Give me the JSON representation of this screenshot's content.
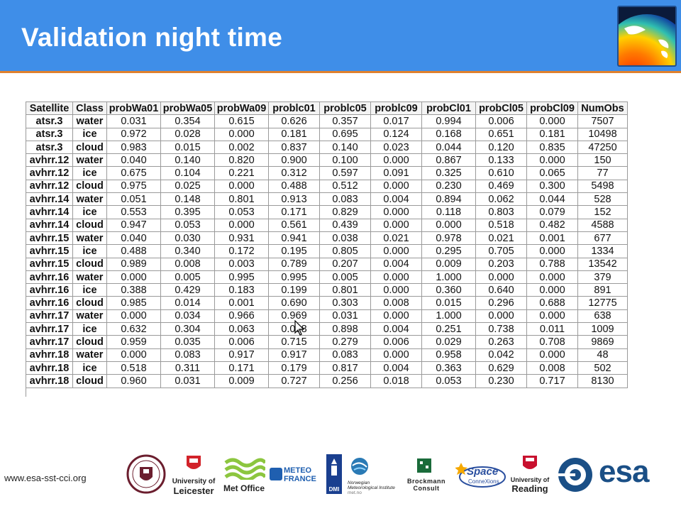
{
  "slide": {
    "title": "Validation night time",
    "footer_url": "www.esa-sst-cci.org"
  },
  "table": {
    "headers": [
      "Satellite",
      "Class",
      "probWa01",
      "probWa05",
      "probWa09",
      "problc01",
      "problc05",
      "problc09",
      "probCl01",
      "probCl05",
      "probCl09",
      "NumObs"
    ],
    "rows": [
      [
        "atsr.3",
        "water",
        "0.031",
        "0.354",
        "0.615",
        "0.626",
        "0.357",
        "0.017",
        "0.994",
        "0.006",
        "0.000",
        "7507"
      ],
      [
        "atsr.3",
        "ice",
        "0.972",
        "0.028",
        "0.000",
        "0.181",
        "0.695",
        "0.124",
        "0.168",
        "0.651",
        "0.181",
        "10498"
      ],
      [
        "atsr.3",
        "cloud",
        "0.983",
        "0.015",
        "0.002",
        "0.837",
        "0.140",
        "0.023",
        "0.044",
        "0.120",
        "0.835",
        "47250"
      ],
      [
        "avhrr.12",
        "water",
        "0.040",
        "0.140",
        "0.820",
        "0.900",
        "0.100",
        "0.000",
        "0.867",
        "0.133",
        "0.000",
        "150"
      ],
      [
        "avhrr.12",
        "ice",
        "0.675",
        "0.104",
        "0.221",
        "0.312",
        "0.597",
        "0.091",
        "0.325",
        "0.610",
        "0.065",
        "77"
      ],
      [
        "avhrr.12",
        "cloud",
        "0.975",
        "0.025",
        "0.000",
        "0.488",
        "0.512",
        "0.000",
        "0.230",
        "0.469",
        "0.300",
        "5498"
      ],
      [
        "avhrr.14",
        "water",
        "0.051",
        "0.148",
        "0.801",
        "0.913",
        "0.083",
        "0.004",
        "0.894",
        "0.062",
        "0.044",
        "528"
      ],
      [
        "avhrr.14",
        "ice",
        "0.553",
        "0.395",
        "0.053",
        "0.171",
        "0.829",
        "0.000",
        "0.118",
        "0.803",
        "0.079",
        "152"
      ],
      [
        "avhrr.14",
        "cloud",
        "0.947",
        "0.053",
        "0.000",
        "0.561",
        "0.439",
        "0.000",
        "0.000",
        "0.518",
        "0.482",
        "4588"
      ],
      [
        "avhrr.15",
        "water",
        "0.040",
        "0.030",
        "0.931",
        "0.941",
        "0.038",
        "0.021",
        "0.978",
        "0.021",
        "0.001",
        "677"
      ],
      [
        "avhrr.15",
        "ice",
        "0.488",
        "0.340",
        "0.172",
        "0.195",
        "0.805",
        "0.000",
        "0.295",
        "0.705",
        "0.000",
        "1334"
      ],
      [
        "avhrr.15",
        "cloud",
        "0.989",
        "0.008",
        "0.003",
        "0.789",
        "0.207",
        "0.004",
        "0.009",
        "0.203",
        "0.788",
        "13542"
      ],
      [
        "avhrr.16",
        "water",
        "0.000",
        "0.005",
        "0.995",
        "0.995",
        "0.005",
        "0.000",
        "1.000",
        "0.000",
        "0.000",
        "379"
      ],
      [
        "avhrr.16",
        "ice",
        "0.388",
        "0.429",
        "0.183",
        "0.199",
        "0.801",
        "0.000",
        "0.360",
        "0.640",
        "0.000",
        "891"
      ],
      [
        "avhrr.16",
        "cloud",
        "0.985",
        "0.014",
        "0.001",
        "0.690",
        "0.303",
        "0.008",
        "0.015",
        "0.296",
        "0.688",
        "12775"
      ],
      [
        "avhrr.17",
        "water",
        "0.000",
        "0.034",
        "0.966",
        "0.969",
        "0.031",
        "0.000",
        "1.000",
        "0.000",
        "0.000",
        "638"
      ],
      [
        "avhrr.17",
        "ice",
        "0.632",
        "0.304",
        "0.063",
        "0.098",
        "0.898",
        "0.004",
        "0.251",
        "0.738",
        "0.011",
        "1009"
      ],
      [
        "avhrr.17",
        "cloud",
        "0.959",
        "0.035",
        "0.006",
        "0.715",
        "0.279",
        "0.006",
        "0.029",
        "0.263",
        "0.708",
        "9869"
      ],
      [
        "avhrr.18",
        "water",
        "0.000",
        "0.083",
        "0.917",
        "0.917",
        "0.083",
        "0.000",
        "0.958",
        "0.042",
        "0.000",
        "48"
      ],
      [
        "avhrr.18",
        "ice",
        "0.518",
        "0.311",
        "0.171",
        "0.179",
        "0.817",
        "0.004",
        "0.363",
        "0.629",
        "0.008",
        "502"
      ],
      [
        "avhrr.18",
        "cloud",
        "0.960",
        "0.031",
        "0.009",
        "0.727",
        "0.256",
        "0.018",
        "0.053",
        "0.230",
        "0.717",
        "8130"
      ]
    ]
  },
  "logos": {
    "leicester_line1": "University of",
    "leicester_line2": "Leicester",
    "metoffice": "Met Office",
    "meteofrance_line1": "METEO",
    "meteofrance_line2": "FRANCE",
    "dmi": "DMI",
    "metno_line1": "Norwegian",
    "metno_line2": "Meteorological Institute",
    "metno_line3": "met.no",
    "brockmann_line1": "Brockmann",
    "brockmann_line2": "Consult",
    "space_line1": "Space",
    "space_line2": "ConneXions",
    "reading_line1": "University of",
    "reading_line2": "Reading",
    "esa": "esa"
  },
  "colors": {
    "header_blue": "#3f8ee8",
    "header_rule": "#e0812d",
    "esa_blue": "#1a4f86"
  }
}
